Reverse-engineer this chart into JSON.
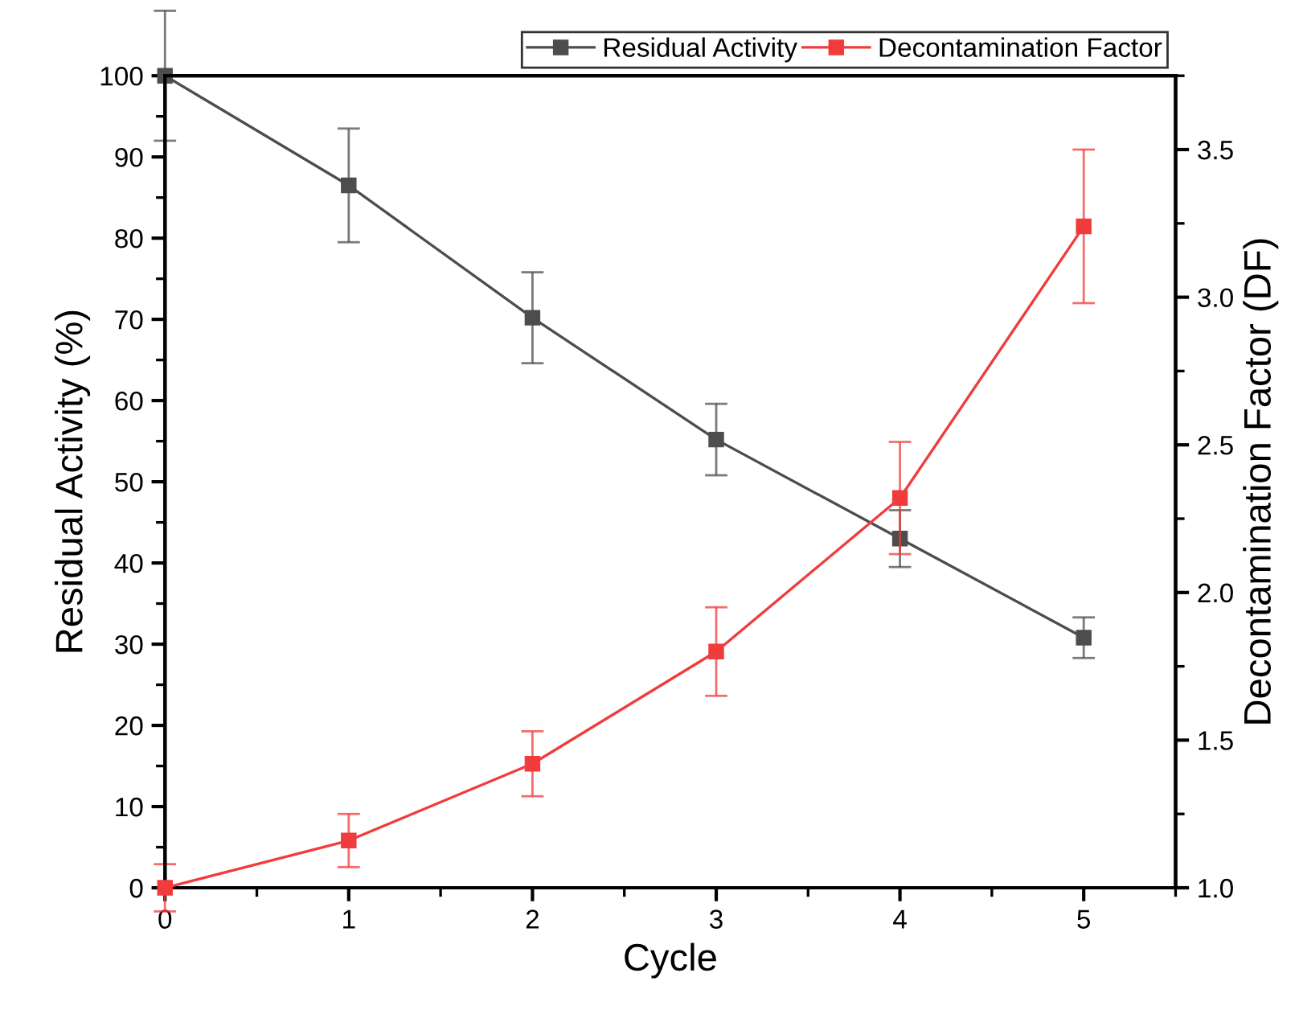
{
  "chart_data": {
    "type": "line",
    "xlabel": "Cycle",
    "ylabel": "Residual Activity (%)",
    "y2label": "Decontamination Factor (DF)",
    "x": [
      0,
      1,
      2,
      3,
      4,
      5
    ],
    "xlim": [
      0,
      5.5
    ],
    "xticks": [
      0,
      1,
      2,
      3,
      4,
      5
    ],
    "ylim": [
      0,
      100
    ],
    "yticks": [
      0,
      10,
      20,
      30,
      40,
      50,
      60,
      70,
      80,
      90,
      100
    ],
    "y2lim": [
      1.0,
      3.75
    ],
    "y2ticks": [
      {
        "value": 1.0,
        "label": "1.0"
      },
      {
        "value": 1.5,
        "label": "1.5"
      },
      {
        "value": 2.0,
        "label": "2.0"
      },
      {
        "value": 2.5,
        "label": "2.5"
      },
      {
        "value": 3.0,
        "label": "3.0"
      },
      {
        "value": 3.5,
        "label": "3.5"
      }
    ],
    "marker": "square",
    "line_style": "solid",
    "legend": "top right",
    "grid": false,
    "series": [
      {
        "name": "Residual Activity",
        "color": "#4d4d4d",
        "values": [
          100,
          86.5,
          70.2,
          55.2,
          43.0,
          30.8
        ],
        "errors": [
          8,
          7,
          5.6,
          4.4,
          3.5,
          2.5
        ]
      },
      {
        "name": "Decontamination Factor",
        "color": "#f03c3c",
        "axis": "y2",
        "values": [
          1.0,
          1.16,
          1.42,
          1.8,
          2.32,
          3.24
        ],
        "errors": [
          0.08,
          0.09,
          0.11,
          0.15,
          0.19,
          0.26
        ]
      }
    ]
  }
}
